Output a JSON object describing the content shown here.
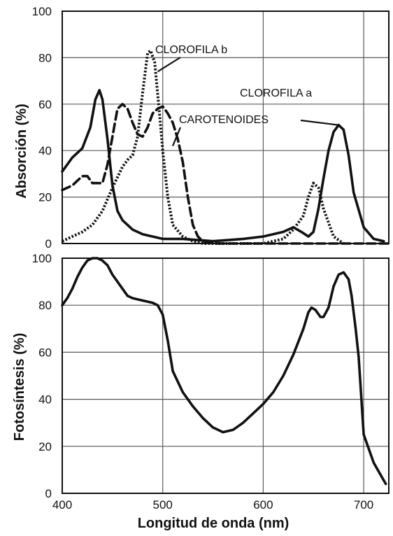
{
  "chart_data": [
    {
      "type": "line",
      "panel": "top",
      "title": "",
      "xlabel": "",
      "ylabel": "Absorción (%)",
      "xlim": [
        400,
        725
      ],
      "ylim": [
        0,
        100
      ],
      "xticks": [],
      "yticks": [
        "0",
        "20",
        "40",
        "60",
        "80",
        "100"
      ],
      "grid": true,
      "series": [
        {
          "name": "CLOROFILA a",
          "style": "solid",
          "x": [
            400,
            410,
            420,
            428,
            433,
            437,
            440,
            445,
            450,
            455,
            460,
            470,
            480,
            500,
            520,
            550,
            580,
            600,
            620,
            630,
            638,
            645,
            650,
            655,
            660,
            665,
            670,
            675,
            680,
            685,
            690,
            700,
            710,
            720
          ],
          "y": [
            31,
            37,
            41,
            50,
            62,
            66,
            62,
            45,
            25,
            14,
            10,
            6,
            4,
            2,
            2,
            1,
            2,
            3,
            5,
            7,
            5,
            3,
            5,
            15,
            28,
            40,
            48,
            51,
            49,
            38,
            22,
            7,
            2,
            1
          ]
        },
        {
          "name": "CLOROFILA b",
          "style": "dotted",
          "x": [
            400,
            410,
            420,
            430,
            440,
            450,
            460,
            465,
            470,
            475,
            480,
            485,
            488,
            492,
            497,
            500,
            505,
            510,
            520,
            530,
            540,
            560,
            600,
            620,
            630,
            640,
            645,
            650,
            655,
            660,
            670,
            680
          ],
          "y": [
            1,
            3,
            5,
            8,
            14,
            24,
            33,
            36,
            38,
            46,
            65,
            82,
            83,
            78,
            55,
            40,
            20,
            8,
            3,
            1,
            0,
            0,
            0,
            2,
            6,
            12,
            20,
            26,
            24,
            15,
            3,
            0
          ]
        },
        {
          "name": "CAROTENOIDES",
          "style": "dashed",
          "x": [
            400,
            410,
            420,
            425,
            430,
            440,
            445,
            450,
            455,
            460,
            465,
            470,
            475,
            480,
            485,
            490,
            495,
            500,
            505,
            510,
            515,
            520,
            525,
            530,
            535,
            540,
            550,
            570,
            600,
            650,
            700,
            725
          ],
          "y": [
            23,
            25,
            29,
            29,
            26,
            26,
            34,
            46,
            58,
            60,
            58,
            52,
            47,
            46,
            50,
            56,
            58,
            59,
            56,
            52,
            45,
            35,
            20,
            8,
            3,
            1,
            0,
            0,
            0,
            0,
            0,
            0
          ]
        }
      ],
      "annotations": [
        {
          "text": "CLOROFILA b",
          "series": "CLOROFILA b"
        },
        {
          "text": "CLOROFILA a",
          "series": "CLOROFILA a"
        },
        {
          "text": "CAROTENOIDES",
          "series": "CAROTENOIDES"
        }
      ]
    },
    {
      "type": "line",
      "panel": "bottom",
      "title": "",
      "xlabel": "Longitud de onda (nm)",
      "ylabel": "Fotosíntesis (%)",
      "xlim": [
        400,
        725
      ],
      "ylim": [
        0,
        100
      ],
      "xticks": [
        "400",
        "500",
        "600",
        "700"
      ],
      "yticks": [
        "0",
        "20",
        "40",
        "60",
        "80",
        "100"
      ],
      "grid": true,
      "series": [
        {
          "name": "",
          "style": "solid",
          "x": [
            400,
            405,
            410,
            415,
            420,
            425,
            430,
            435,
            440,
            445,
            450,
            460,
            465,
            470,
            480,
            490,
            495,
            500,
            505,
            510,
            520,
            530,
            540,
            550,
            555,
            560,
            570,
            580,
            590,
            600,
            610,
            620,
            630,
            640,
            645,
            648,
            652,
            657,
            660,
            665,
            670,
            675,
            680,
            685,
            688,
            692,
            695,
            700,
            710,
            722
          ],
          "y": [
            80,
            83,
            87,
            92,
            96,
            99,
            100,
            100,
            99,
            97,
            93,
            87,
            84,
            83,
            82,
            81,
            80,
            76,
            65,
            52,
            43,
            37,
            32,
            28,
            27,
            26,
            27,
            30,
            34,
            38,
            43,
            50,
            59,
            70,
            77,
            79,
            78,
            75,
            75,
            79,
            88,
            93,
            94,
            91,
            84,
            70,
            58,
            25,
            13,
            4
          ]
        }
      ]
    }
  ]
}
